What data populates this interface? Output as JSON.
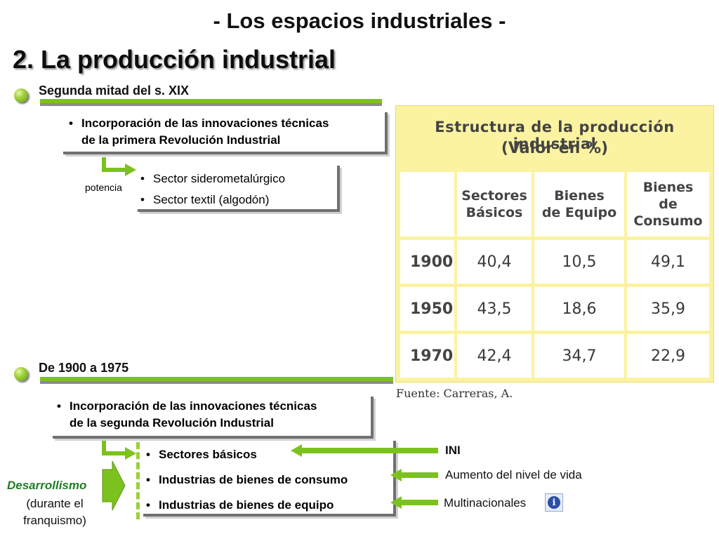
{
  "header": {
    "subtitle": "- Los espacios industriales -",
    "title": "2. La producción industrial"
  },
  "section1": {
    "label": "Segunda mitad del s. XIX",
    "box_line1": "Incorporación de las innovaciones técnicas",
    "box_line2": "de la primera Revolución Industrial",
    "arrow_label": "potencia",
    "items": [
      "Sector siderometalúrgico",
      "Sector textil (algodón)"
    ]
  },
  "section2": {
    "label": "De 1900 a 1975",
    "box_line1": "Incorporación de las innovaciones técnicas",
    "box_line2": "de la segunda Revolución Industrial",
    "side_label": "Desarrollismo",
    "side_sub1": "(durante el",
    "side_sub2": "franquismo)",
    "items": [
      "Sectores básicos",
      "Industrias de bienes de consumo",
      "Industrias de bienes de equipo"
    ],
    "right_labels": [
      "INI",
      "Aumento del nivel de vida",
      "Multinacionales"
    ]
  },
  "table": {
    "title_line1": "Estructura de la producción industrial",
    "title_line2": "(Valor en %)",
    "columns": [
      [
        "Sectores",
        "Básicos"
      ],
      [
        "Bienes",
        "de Equipo"
      ],
      [
        "Bienes",
        "de",
        "Consumo"
      ]
    ],
    "rows": [
      {
        "year": "1900",
        "values": [
          "40,4",
          "10,5",
          "49,1"
        ]
      },
      {
        "year": "1950",
        "values": [
          "43,5",
          "18,6",
          "35,9"
        ]
      },
      {
        "year": "1970",
        "values": [
          "42,4",
          "34,7",
          "22,9"
        ]
      }
    ],
    "source": "Fuente: Carreras, A."
  },
  "colors": {
    "accent_green": "#7cc21e",
    "table_bg": "#fbf3a1",
    "shadow_gray": "#707070"
  },
  "icons": {
    "bullet": "green-orb-icon",
    "info": "info-icon",
    "arrow": "green-arrow-icon"
  }
}
